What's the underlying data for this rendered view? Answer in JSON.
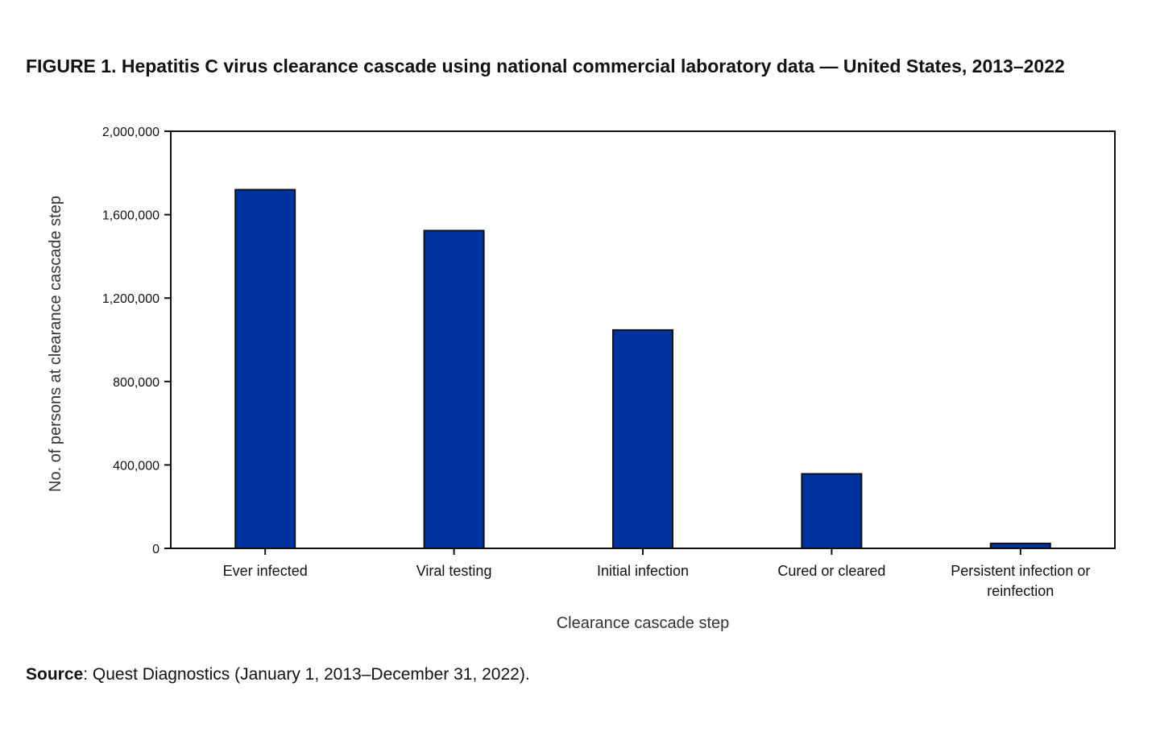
{
  "title_prefix": "FIGURE 1",
  "title_rest": ". Hepatitis C virus clearance cascade using national commercial laboratory data — United States, 2013–2022",
  "source_label": "Source",
  "source_text": ": Quest Diagnostics (January 1, 2013–December 31, 2022).",
  "chart_data": {
    "type": "bar",
    "title": "Hepatitis C virus clearance cascade using national commercial laboratory data — United States, 2013–2022",
    "categories": [
      "Ever infected",
      "Viral testing",
      "Initial infection",
      "Cured or cleared",
      "Persistent infection or reinfection"
    ],
    "category_lines": [
      [
        "Ever infected"
      ],
      [
        "Viral testing"
      ],
      [
        "Initial infection"
      ],
      [
        "Cured or cleared"
      ],
      [
        "Persistent infection or",
        "reinfection"
      ]
    ],
    "values": [
      1719780,
      1523455,
      1046785,
      357094,
      23399
    ],
    "xlabel": "Clearance cascade step",
    "ylabel": "No. of persons at clearance cascade step",
    "ylim": [
      0,
      2000000
    ],
    "yticks": [
      0,
      400000,
      800000,
      1200000,
      1600000,
      2000000
    ],
    "ytick_labels": [
      "0",
      "400,000",
      "800,000",
      "1,200,000",
      "1,600,000",
      "2,000,000"
    ],
    "bar_color": "#0033a0",
    "grid": false
  }
}
